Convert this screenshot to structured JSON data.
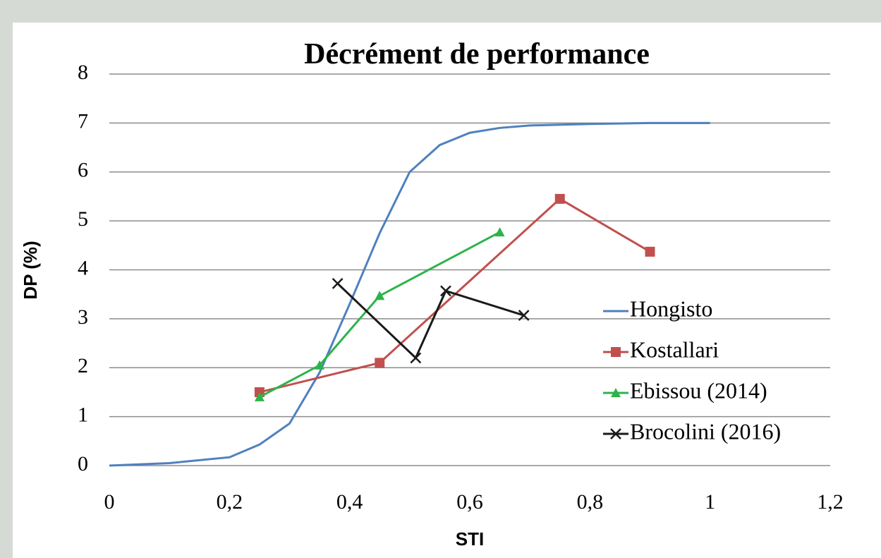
{
  "chart_data": {
    "type": "line",
    "title": "Décrément de performance",
    "x_label": "STI",
    "y_label": "DP (%)",
    "xlim": [
      0,
      1.2
    ],
    "ylim": [
      0,
      8
    ],
    "xticks": [
      0,
      {
        "value": 0.2,
        "label": "0,2"
      },
      {
        "value": 0.4,
        "label": "0,4"
      },
      {
        "value": 0.6,
        "label": "0,6"
      },
      {
        "value": 0.8,
        "label": "0,8"
      },
      1,
      {
        "value": 1.2,
        "label": "1,2"
      }
    ],
    "yticks": [
      0,
      1,
      2,
      3,
      4,
      5,
      6,
      7,
      8
    ],
    "grid": true,
    "legend": "right",
    "series": [
      {
        "name": "Hongisto",
        "color": "#4f81bd",
        "marker": "none",
        "x": [
          0,
          0.1,
          0.2,
          0.25,
          0.3,
          0.35,
          0.4,
          0.45,
          0.5,
          0.55,
          0.6,
          0.65,
          0.7,
          0.8,
          0.9,
          1
        ],
        "values": [
          0,
          0.05,
          0.17,
          0.43,
          0.86,
          1.9,
          3.3,
          4.75,
          6.0,
          6.55,
          6.8,
          6.9,
          6.95,
          6.98,
          7,
          7
        ]
      },
      {
        "name": "Kostallari",
        "color": "#c0504d",
        "marker": "square",
        "x": [
          0.25,
          0.45,
          0.75,
          0.9
        ],
        "values": [
          1.5,
          2.1,
          5.45,
          4.37
        ]
      },
      {
        "name": "Ebissou (2014)",
        "color": "#2eb34a",
        "marker": "triangle",
        "x": [
          0.25,
          0.35,
          0.45,
          0.65
        ],
        "values": [
          1.4,
          2.05,
          3.47,
          4.77
        ]
      },
      {
        "name": "Brocolini (2016)",
        "color": "#1a1a1a",
        "marker": "x",
        "x": [
          0.38,
          0.51,
          0.56,
          0.69
        ],
        "values": [
          3.72,
          2.2,
          3.57,
          3.07
        ]
      }
    ]
  }
}
